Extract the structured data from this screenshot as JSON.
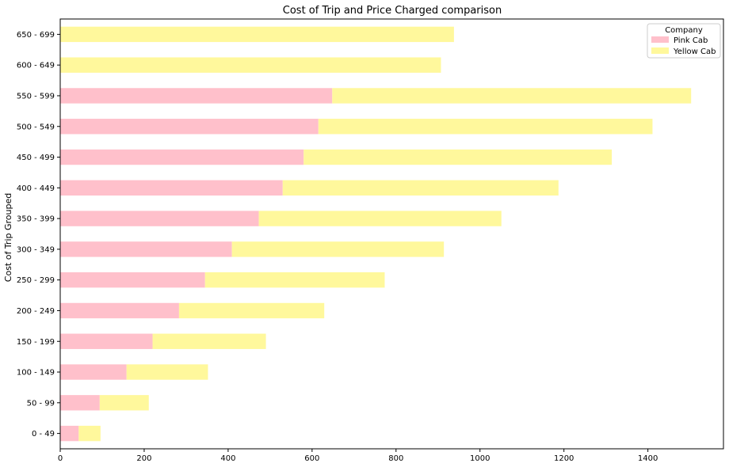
{
  "chart_data": {
    "type": "bar",
    "orientation": "horizontal",
    "stacked": true,
    "title": "Cost of Trip and Price Charged comparison",
    "xlabel": "",
    "ylabel": "Cost of Trip Grouped",
    "xlim": [
      0,
      1580
    ],
    "x_ticks": [
      0,
      200,
      400,
      600,
      800,
      1000,
      1200,
      1400
    ],
    "categories": [
      "0 - 49",
      "50 - 99",
      "100 - 149",
      "150 - 199",
      "200 - 249",
      "250 - 299",
      "300 - 349",
      "350 - 399",
      "400 - 449",
      "450 - 499",
      "500 - 549",
      "550 - 599",
      "600 - 649",
      "650 - 699"
    ],
    "series": [
      {
        "name": "Pink Cab",
        "color": "#ffc0cb",
        "values": [
          44,
          94,
          158,
          220,
          283,
          345,
          409,
          473,
          530,
          580,
          615,
          648,
          0,
          0
        ]
      },
      {
        "name": "Yellow Cab",
        "color": "#fff89c",
        "values": [
          52,
          117,
          194,
          270,
          346,
          428,
          505,
          578,
          657,
          734,
          796,
          855,
          907,
          938
        ]
      }
    ],
    "legend": {
      "title": "Company",
      "position": "top-right"
    },
    "grid": false
  }
}
